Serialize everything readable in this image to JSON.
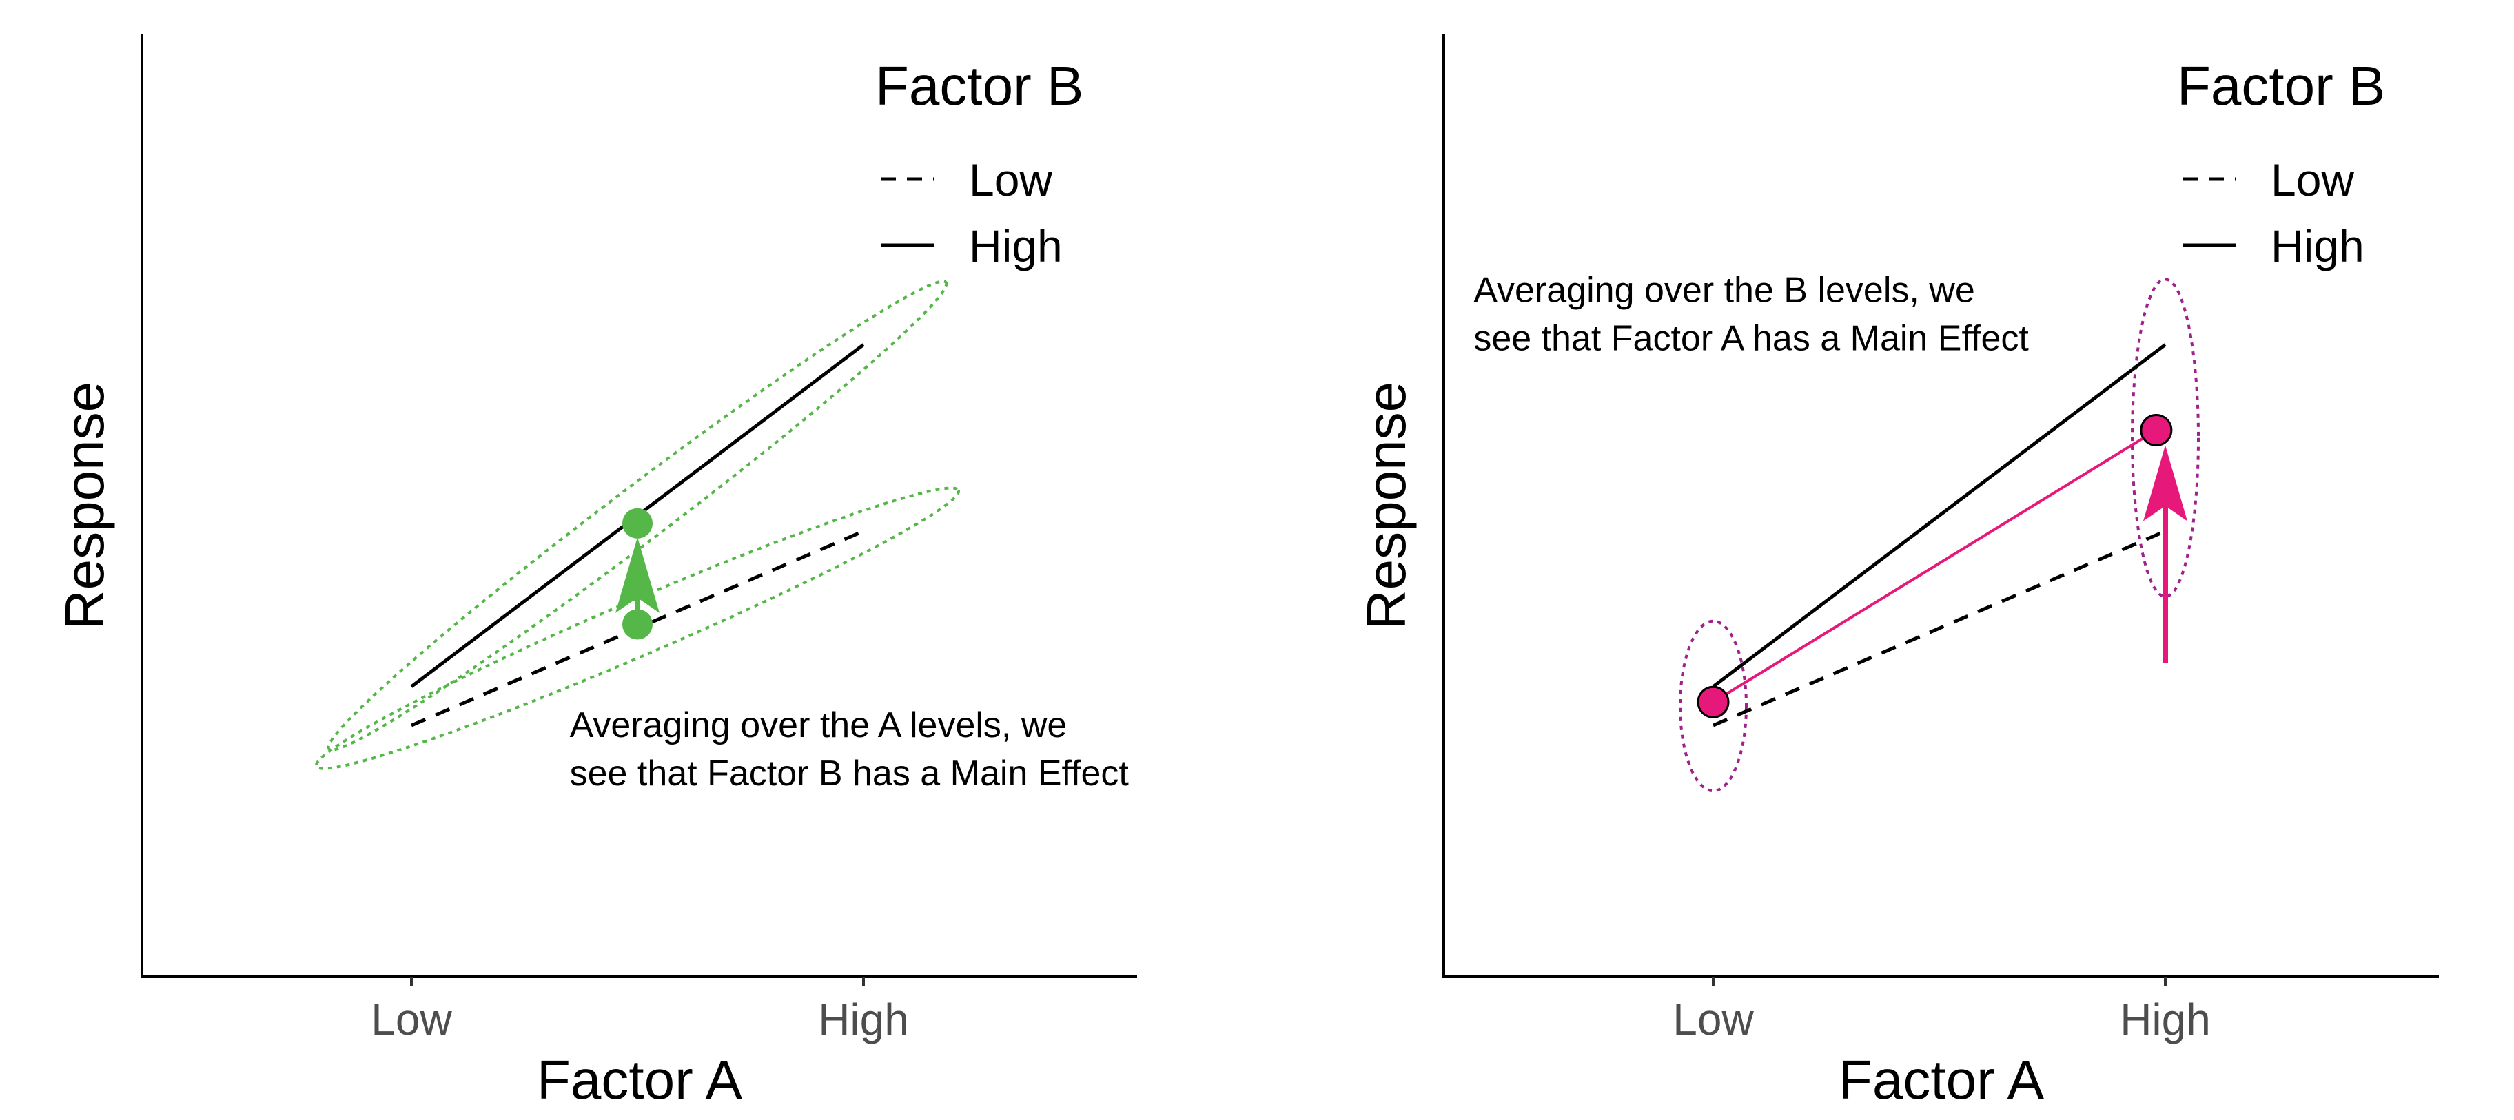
{
  "chart_data": [
    {
      "type": "line",
      "xlabel": "Factor A",
      "ylabel": "Response",
      "categories": [
        "Low",
        "High"
      ],
      "ylim": [
        0,
        10
      ],
      "grid": false,
      "legend": {
        "title": "Factor B",
        "placement": "top-right",
        "entries": [
          "Low",
          "High"
        ]
      },
      "series": [
        {
          "name": "Low",
          "values": [
            2.1,
            4.6
          ],
          "style": "dashed",
          "color": "#000000"
        },
        {
          "name": "High",
          "values": [
            2.6,
            7.0
          ],
          "style": "solid",
          "color": "#000000"
        }
      ],
      "main_effect": {
        "factor": "B",
        "color": "#55b748",
        "points": [
          {
            "x": 0.5,
            "y": 3.4
          },
          {
            "x": 0.5,
            "y": 4.7
          }
        ]
      },
      "annotation": {
        "lines": [
          "Averaging over the A levels, we",
          "see that Factor B has a Main Effect"
        ],
        "x": 0.35,
        "y": 1.95
      }
    },
    {
      "type": "line",
      "xlabel": "Factor A",
      "ylabel": "Response",
      "categories": [
        "Low",
        "High"
      ],
      "ylim": [
        0,
        10
      ],
      "grid": false,
      "legend": {
        "title": "Factor B",
        "placement": "top-right",
        "entries": [
          "Low",
          "High"
        ]
      },
      "series": [
        {
          "name": "Low",
          "values": [
            2.1,
            4.6
          ],
          "style": "dashed",
          "color": "#000000"
        },
        {
          "name": "High",
          "values": [
            2.6,
            7.0
          ],
          "style": "solid",
          "color": "#000000"
        }
      ],
      "main_effect": {
        "factor": "A",
        "color": "#e6197a",
        "points": [
          {
            "x": 0,
            "y": 2.4
          },
          {
            "x": 0.98,
            "y": 5.9
          }
        ]
      },
      "annotation": {
        "lines": [
          "Averaging over the B levels, we",
          "see that Factor A has a Main Effect"
        ],
        "x": -0.53,
        "y": 7.55
      }
    }
  ]
}
